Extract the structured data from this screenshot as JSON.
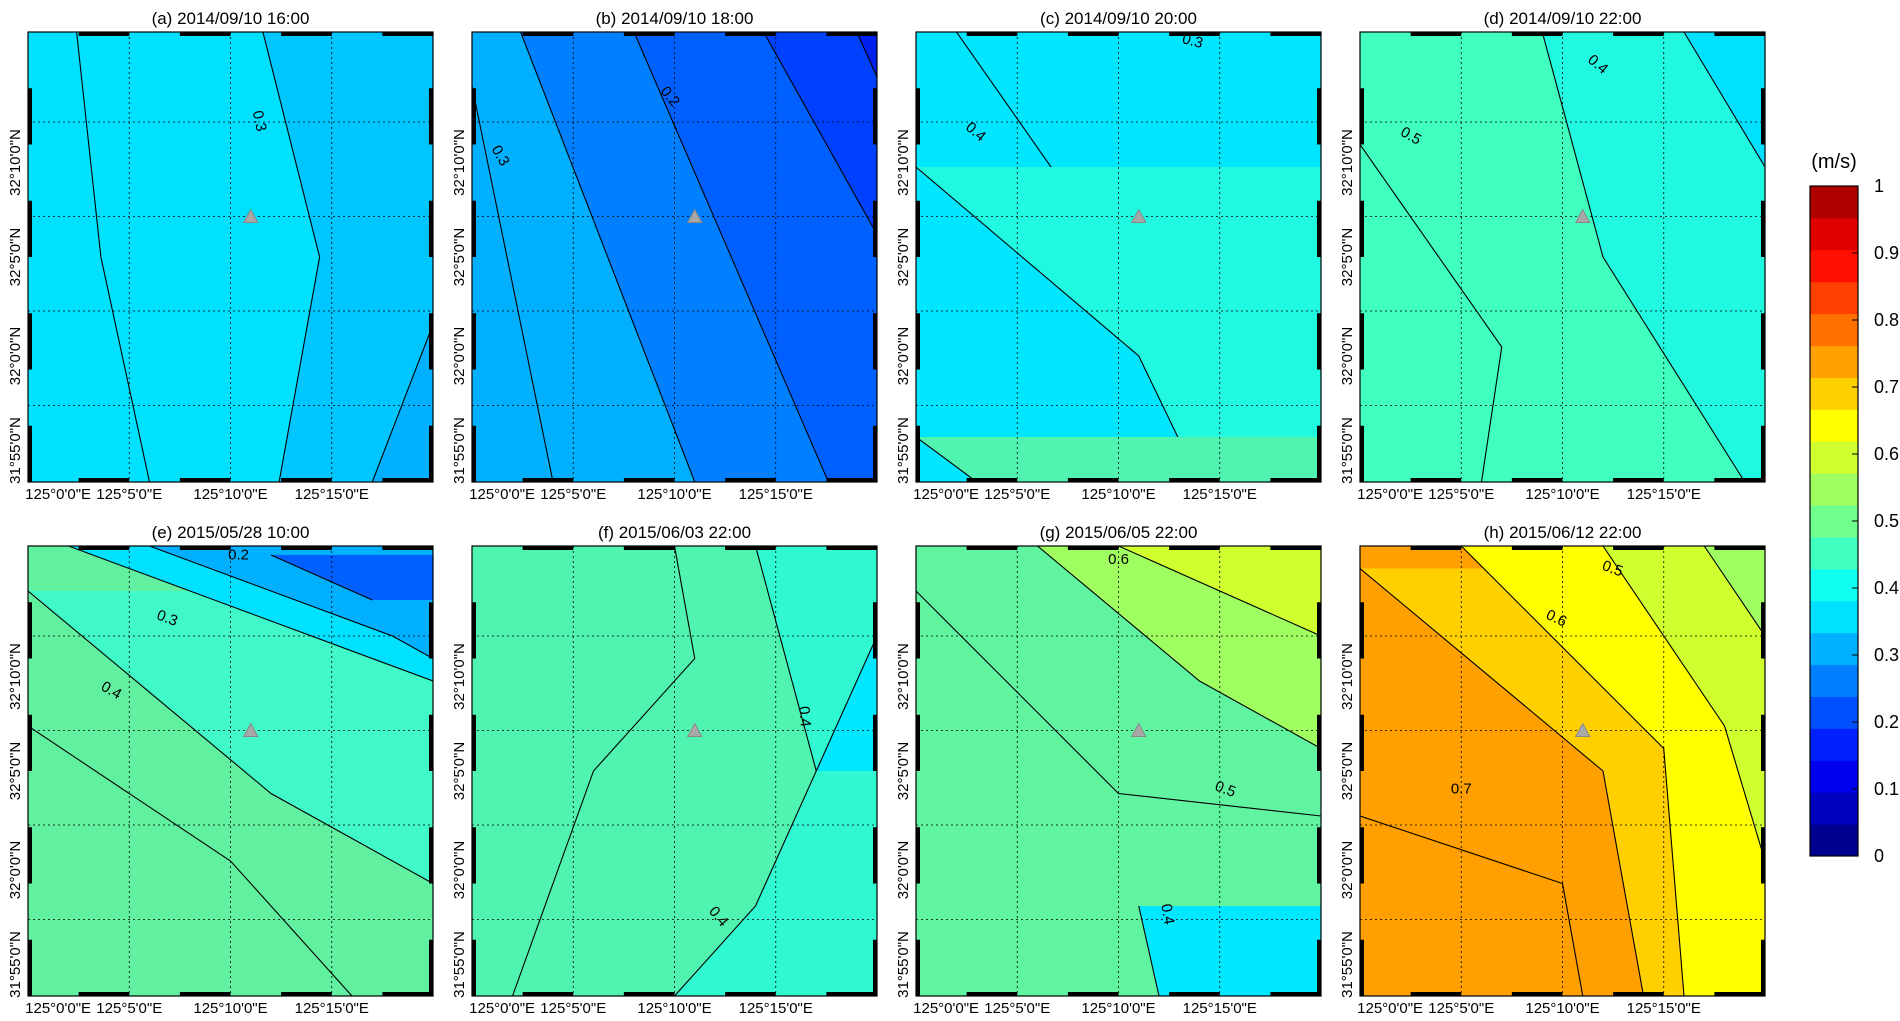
{
  "chart_data": {
    "type": "heatmap",
    "description_scale": "filled contour maps of current speed",
    "colorbar": {
      "unit_label": "(m/s)",
      "min": 0,
      "max": 1,
      "step": 0.05,
      "tick_labels": [
        "0",
        "0.1",
        "0.2",
        "0.3",
        "0.4",
        "0.5",
        "0.6",
        "0.7",
        "0.8",
        "0.9",
        "1"
      ],
      "colors": [
        "#00008f",
        "#0000bf",
        "#0000ef",
        "#0020ff",
        "#0050ff",
        "#0080ff",
        "#00b0ff",
        "#00e0ff",
        "#10ffef",
        "#40ffbf",
        "#70ff8f",
        "#a0ff60",
        "#d0ff30",
        "#ffff00",
        "#ffcf00",
        "#ff9f00",
        "#ff7000",
        "#ff4000",
        "#ff1000",
        "#df0000",
        "#af0000"
      ]
    },
    "x_tick_labels": [
      "125°0'0\"E",
      "125°5'0\"E",
      "125°10'0\"E",
      "125°15'0\"E"
    ],
    "y_tick_labels": [
      "31°55'0\"N",
      "32°0'0\"N",
      "32°5'0\"N",
      "32°10'0\"N"
    ],
    "marker": "triangle",
    "panels": [
      {
        "title": "(a) 2014/09/10 16:00",
        "labels": [
          {
            "text": "0.3",
            "xf": 0.56,
            "yf": 0.2,
            "rot": 78
          }
        ],
        "bands": [
          {
            "color": "#00e0ff",
            "line": [
              [
                0.12,
                0
              ],
              [
                0.18,
                0.5
              ],
              [
                0.3,
                1
              ]
            ]
          },
          {
            "color": "#00c6ff",
            "line": [
              [
                0.58,
                0
              ],
              [
                0.72,
                0.5
              ],
              [
                0.62,
                1
              ]
            ]
          },
          {
            "color": "#00b0ff",
            "line": [
              [
                1,
                0.65
              ],
              [
                0.85,
                1
              ]
            ]
          }
        ]
      },
      {
        "title": "(b) 2014/09/10 18:00",
        "labels": [
          {
            "text": "0.2",
            "xf": 0.48,
            "yf": 0.15,
            "rot": 50
          },
          {
            "text": "0.3",
            "xf": 0.06,
            "yf": 0.28,
            "rot": 60
          }
        ],
        "bands": [
          {
            "color": "#00b0ff",
            "line": [
              [
                0,
                0.12
              ],
              [
                0.2,
                1
              ]
            ]
          },
          {
            "color": "#0080ff",
            "line": [
              [
                0.12,
                0
              ],
              [
                0.55,
                1
              ]
            ]
          },
          {
            "color": "#0060ff",
            "line": [
              [
                0.4,
                0
              ],
              [
                0.88,
                1
              ]
            ]
          },
          {
            "color": "#0040ff",
            "line": [
              [
                0.72,
                0
              ],
              [
                1,
                0.45
              ]
            ]
          },
          {
            "color": "#0020ef",
            "line": [
              [
                0.95,
                0
              ],
              [
                1,
                0.1
              ]
            ]
          }
        ]
      },
      {
        "title": "(c) 2014/09/10 20:00",
        "labels": [
          {
            "text": "0.3",
            "xf": 0.68,
            "yf": 0.03,
            "rot": 15
          },
          {
            "text": "0.4",
            "xf": 0.14,
            "yf": 0.23,
            "rot": 40
          }
        ],
        "bands": [
          {
            "color": "#00e6ff",
            "line": [
              [
                0.1,
                0
              ],
              [
                0.45,
                0.45
              ],
              [
                0.95,
                1
              ]
            ]
          },
          {
            "color": "#20f8e0",
            "line": [
              [
                0,
                0.3
              ],
              [
                0.55,
                0.72
              ],
              [
                0.7,
                1
              ]
            ]
          },
          {
            "color": "#50f4b0",
            "line": [
              [
                0,
                0.9
              ],
              [
                0.15,
                1
              ]
            ]
          }
        ]
      },
      {
        "title": "(d) 2014/09/10 22:00",
        "labels": [
          {
            "text": "0.4",
            "xf": 0.58,
            "yf": 0.08,
            "rot": 40
          },
          {
            "text": "0.5",
            "xf": 0.12,
            "yf": 0.24,
            "rot": 30
          }
        ],
        "bands": [
          {
            "color": "#40ffbf",
            "line": [
              [
                0,
                0.25
              ],
              [
                0.35,
                0.7
              ],
              [
                0.3,
                1
              ]
            ]
          },
          {
            "color": "#20f8e0",
            "line": [
              [
                0.45,
                0
              ],
              [
                0.6,
                0.5
              ],
              [
                0.95,
                1
              ]
            ]
          },
          {
            "color": "#00e0ff",
            "line": [
              [
                0.8,
                0
              ],
              [
                1,
                0.3
              ]
            ]
          }
        ]
      },
      {
        "title": "(e) 2015/05/28 10:00",
        "labels": [
          {
            "text": "0.2",
            "xf": 0.52,
            "yf": 0.03,
            "rot": 0
          },
          {
            "text": "0.3",
            "xf": 0.34,
            "yf": 0.17,
            "rot": 20
          },
          {
            "text": "0.4",
            "xf": 0.2,
            "yf": 0.33,
            "rot": 30
          }
        ],
        "bands": [
          {
            "color": "#60f0a0",
            "line": [
              [
                0,
                0.4
              ],
              [
                0.5,
                0.7
              ],
              [
                0.8,
                1
              ]
            ]
          },
          {
            "color": "#40f8c8",
            "line": [
              [
                0,
                0.1
              ],
              [
                0.6,
                0.55
              ],
              [
                1,
                0.75
              ]
            ]
          },
          {
            "color": "#00e0ff",
            "line": [
              [
                0.1,
                0
              ],
              [
                1,
                0.3
              ]
            ]
          },
          {
            "color": "#00b0ff",
            "line": [
              [
                0.3,
                0
              ],
              [
                0.9,
                0.2
              ],
              [
                1,
                0.25
              ]
            ]
          },
          {
            "color": "#0060ff",
            "line": [
              [
                0.6,
                0.02
              ],
              [
                0.85,
                0.12
              ]
            ]
          }
        ]
      },
      {
        "title": "(f) 2015/06/03 22:00",
        "labels": [
          {
            "text": "0.4",
            "xf": 0.81,
            "yf": 0.38,
            "rot": 85
          },
          {
            "text": "0.4",
            "xf": 0.6,
            "yf": 0.83,
            "rot": 50
          }
        ],
        "bands": [
          {
            "color": "#50f4b0",
            "line": [
              [
                0.5,
                0
              ],
              [
                0.55,
                0.25
              ],
              [
                0.3,
                0.5
              ],
              [
                0.1,
                1
              ]
            ]
          },
          {
            "color": "#30f8d0",
            "line": [
              [
                0.7,
                0
              ],
              [
                0.85,
                0.5
              ],
              [
                0.7,
                0.8
              ],
              [
                0.5,
                1
              ]
            ]
          },
          {
            "color": "#00e8ff",
            "line": [
              [
                0.85,
                0.5
              ],
              [
                1,
                0.2
              ]
            ]
          }
        ]
      },
      {
        "title": "(g) 2015/06/05 22:00",
        "labels": [
          {
            "text": "0.6",
            "xf": 0.5,
            "yf": 0.04,
            "rot": 0
          },
          {
            "text": "0.5",
            "xf": 0.76,
            "yf": 0.55,
            "rot": 20
          },
          {
            "text": "0.4",
            "xf": 0.61,
            "yf": 0.82,
            "rot": 80
          }
        ],
        "bands": [
          {
            "color": "#60f4a0",
            "line": [
              [
                0,
                0.1
              ],
              [
                0.5,
                0.55
              ],
              [
                1,
                0.6
              ]
            ]
          },
          {
            "color": "#a0ff60",
            "line": [
              [
                0.3,
                0
              ],
              [
                0.7,
                0.3
              ],
              [
                1,
                0.45
              ]
            ]
          },
          {
            "color": "#d0ff30",
            "line": [
              [
                0.5,
                0
              ],
              [
                1,
                0.2
              ]
            ]
          },
          {
            "color": "#00e8ff",
            "line": [
              [
                0.55,
                0.8
              ],
              [
                0.6,
                1
              ]
            ]
          }
        ]
      },
      {
        "title": "(h) 2015/06/12 22:00",
        "labels": [
          {
            "text": "0.5",
            "xf": 0.62,
            "yf": 0.06,
            "rot": 20
          },
          {
            "text": "0.6",
            "xf": 0.48,
            "yf": 0.17,
            "rot": 25
          },
          {
            "text": "0.7",
            "xf": 0.25,
            "yf": 0.55,
            "rot": 0
          }
        ],
        "bands": [
          {
            "color": "#ff9f00",
            "line": [
              [
                0,
                0.6
              ],
              [
                0.5,
                0.75
              ],
              [
                0.55,
                1
              ]
            ]
          },
          {
            "color": "#ffcf00",
            "line": [
              [
                0,
                0.05
              ],
              [
                0.6,
                0.5
              ],
              [
                0.7,
                1
              ]
            ]
          },
          {
            "color": "#ffff00",
            "line": [
              [
                0.25,
                0
              ],
              [
                0.75,
                0.45
              ],
              [
                0.8,
                1
              ]
            ]
          },
          {
            "color": "#d0ff30",
            "line": [
              [
                0.6,
                0
              ],
              [
                0.9,
                0.4
              ],
              [
                1,
                0.7
              ]
            ]
          },
          {
            "color": "#a0ff60",
            "line": [
              [
                0.85,
                0
              ],
              [
                1,
                0.2
              ]
            ]
          }
        ]
      }
    ]
  }
}
